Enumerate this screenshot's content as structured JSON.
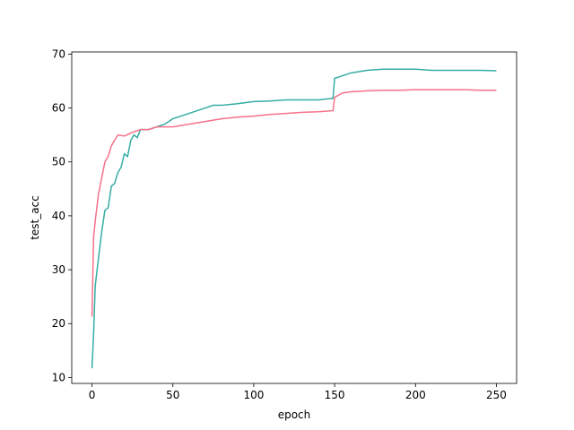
{
  "chart_data": {
    "type": "line",
    "xlabel": "epoch",
    "ylabel": "test_acc",
    "xlim": [
      -12.5,
      262.5
    ],
    "xticks": [
      0,
      50,
      100,
      150,
      200,
      250
    ],
    "ylim": [
      8.9,
      70.4
    ],
    "yticks": [
      10,
      20,
      30,
      40,
      50,
      60,
      70
    ],
    "series": [
      {
        "color": "#36ada4",
        "x": [
          0,
          1,
          2,
          4,
          6,
          8,
          10,
          12,
          14,
          16,
          18,
          20,
          22,
          24,
          26,
          28,
          30,
          35,
          40,
          45,
          50,
          55,
          60,
          65,
          70,
          75,
          80,
          90,
          100,
          110,
          120,
          130,
          140,
          149,
          150,
          155,
          160,
          170,
          180,
          190,
          200,
          210,
          220,
          230,
          240,
          250
        ],
        "values": [
          11.7,
          18,
          27,
          32,
          37,
          41,
          41.5,
          45.5,
          46,
          48,
          49,
          51.5,
          51,
          54,
          55,
          54.5,
          56,
          56,
          56.5,
          57,
          58,
          58.5,
          59,
          59.5,
          60,
          60.5,
          60.5,
          60.8,
          61.2,
          61.3,
          61.5,
          61.5,
          61.5,
          61.8,
          65.5,
          66,
          66.5,
          67,
          67.2,
          67.2,
          67.2,
          67,
          67,
          67,
          67,
          66.9
        ]
      },
      {
        "color": "#f77189",
        "x": [
          0,
          1,
          2,
          4,
          6,
          8,
          10,
          12,
          14,
          16,
          20,
          25,
          30,
          35,
          40,
          50,
          60,
          70,
          80,
          90,
          100,
          110,
          120,
          130,
          140,
          149,
          150,
          155,
          160,
          170,
          180,
          190,
          200,
          210,
          220,
          230,
          240,
          250
        ],
        "values": [
          21.3,
          36,
          39,
          44,
          47,
          50,
          51,
          53,
          54,
          55,
          54.8,
          55.5,
          56,
          56,
          56.5,
          56.5,
          57,
          57.5,
          58,
          58.3,
          58.5,
          58.8,
          59,
          59.2,
          59.3,
          59.5,
          62,
          62.8,
          63,
          63.2,
          63.3,
          63.3,
          63.4,
          63.4,
          63.4,
          63.4,
          63.3,
          63.3
        ]
      }
    ]
  }
}
